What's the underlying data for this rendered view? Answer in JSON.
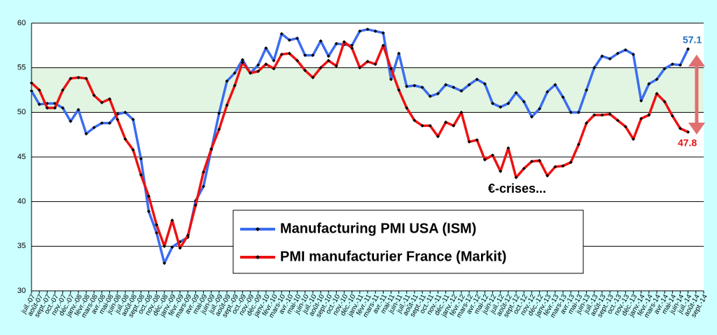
{
  "chart_data": {
    "type": "line",
    "categories": [
      "juil.-07",
      "août-07",
      "sept.-07",
      "oct.-07",
      "nov.-07",
      "déc.-07",
      "janv.-08",
      "févr.-08",
      "mars-08",
      "avr.-08",
      "mai-08",
      "juin-08",
      "juil.-08",
      "août-08",
      "sept.-08",
      "oct.-08",
      "nov.-08",
      "déc.-08",
      "janv.-09",
      "févr.-09",
      "mars-09",
      "avr.-09",
      "mai-09",
      "juin-09",
      "juil.-09",
      "août-09",
      "sept.-09",
      "oct.-09",
      "nov.-09",
      "déc.-09",
      "janv.-10",
      "févr.-10",
      "mars-10",
      "avr.-10",
      "mai-10",
      "juin-10",
      "juil.-10",
      "août-10",
      "sept.-10",
      "oct.-10",
      "nov.-10",
      "déc.-10",
      "janv.-11",
      "févr.-11",
      "mars-11",
      "avr.-11",
      "mai-11",
      "juin-11",
      "juil.-11",
      "août-11",
      "sept.-11",
      "oct.-11",
      "nov.-11",
      "déc.-11",
      "janv.-12",
      "févr.-12",
      "mars-12",
      "avr.-12",
      "mai-12",
      "juin-12",
      "juil.-12",
      "août-12",
      "sept.-12",
      "oct.-12",
      "nov.-12",
      "déc.-12",
      "janv.-13",
      "févr.-13",
      "mars-13",
      "avr.-13",
      "mai-13",
      "juin-13",
      "juil.-13",
      "août-13",
      "sept.-13",
      "oct.-13",
      "nov.-13",
      "déc.-13",
      "janv.-14",
      "févr.-14",
      "mars-14",
      "avr.-14",
      "mai-14",
      "juin-14",
      "juil.-14",
      "août-14",
      "sept.-14"
    ],
    "series": [
      {
        "name": "Manufacturing PMI USA (ISM)",
        "color": "#3b6cf0",
        "values": [
          52.4,
          50.9,
          51.0,
          51.0,
          50.5,
          49.0,
          50.3,
          47.6,
          48.3,
          48.8,
          48.8,
          49.8,
          50.0,
          49.2,
          44.8,
          38.9,
          36.5,
          33.1,
          34.9,
          35.5,
          36.0,
          40.1,
          41.7,
          45.8,
          49.9,
          53.5,
          54.4,
          55.9,
          54.4,
          55.3,
          57.2,
          55.8,
          58.8,
          58.1,
          58.3,
          56.4,
          56.4,
          58.0,
          56.3,
          57.7,
          57.6,
          57.5,
          59.1,
          59.3,
          59.1,
          58.9,
          53.7,
          56.6,
          52.9,
          53.0,
          52.8,
          51.8,
          52.1,
          53.1,
          52.8,
          52.4,
          53.1,
          53.7,
          53.2,
          51.0,
          50.6,
          51.0,
          52.2,
          51.2,
          49.5,
          50.4,
          52.3,
          53.1,
          51.7,
          50.0,
          50.0,
          52.5,
          55.0,
          56.3,
          56.0,
          56.6,
          57.0,
          56.5,
          51.3,
          53.2,
          53.7,
          54.9,
          55.4,
          55.3,
          57.1,
          null,
          null
        ]
      },
      {
        "name": "PMI manufacturier France (Markit)",
        "color": "#ee1111",
        "values": [
          53.3,
          52.5,
          50.5,
          50.5,
          52.5,
          53.8,
          53.9,
          53.8,
          51.9,
          51.1,
          51.5,
          49.2,
          47.0,
          45.8,
          43.0,
          40.6,
          37.4,
          35.0,
          37.9,
          34.8,
          36.2,
          39.6,
          43.3,
          45.9,
          48.1,
          50.8,
          53.0,
          55.6,
          54.4,
          54.6,
          55.4,
          54.9,
          56.5,
          56.6,
          55.8,
          54.7,
          53.9,
          55.0,
          55.8,
          55.2,
          57.9,
          57.2,
          55.0,
          55.7,
          55.4,
          57.5,
          54.9,
          52.5,
          50.5,
          49.1,
          48.5,
          48.5,
          47.3,
          48.9,
          48.5,
          50.0,
          46.7,
          46.9,
          44.7,
          45.2,
          43.4,
          46.0,
          42.7,
          43.7,
          44.5,
          44.6,
          42.9,
          43.9,
          44.0,
          44.4,
          46.4,
          48.8,
          49.7,
          49.7,
          49.8,
          49.1,
          48.4,
          47.0,
          49.3,
          49.7,
          52.1,
          51.2,
          49.6,
          48.2,
          47.8,
          null,
          null
        ]
      }
    ],
    "ylim": [
      30,
      60
    ],
    "yticks": [
      30,
      35,
      40,
      45,
      50,
      55,
      60
    ],
    "grid": true,
    "band": [
      50,
      55
    ],
    "annotations": [
      "57.1",
      "47.8",
      "€-crises..."
    ]
  }
}
